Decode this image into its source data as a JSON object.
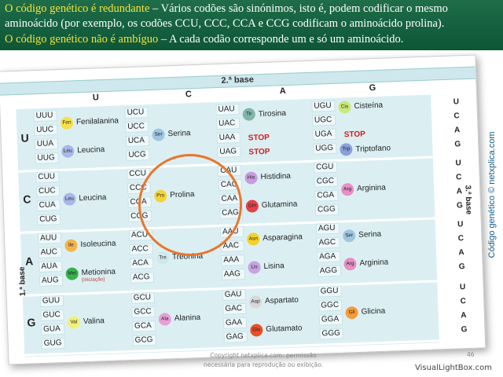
{
  "header": {
    "line1_highlight": "O código genético é redundante",
    "line1_rest": " – Vários codões são sinónimos, isto é, podem codificar o mesmo",
    "line2": "aminoácido (por exemplo, os codões CCU, CCC, CCA e CCG codificam o aminoácido prolina).",
    "line3_highlight": "O código genético não é ambíguo",
    "line3_rest": " – A cada codão corresponde um e só um aminoácido."
  },
  "table": {
    "second_base_label": "2.ª base",
    "first_base_label": "1.ª base",
    "third_base_label": "3.ª base",
    "second_letters": [
      "U",
      "C",
      "A",
      "G"
    ],
    "rows": [
      {
        "first": "U",
        "cells": [
          {
            "codons": [
              "UUU",
              "UUC",
              "UUA",
              "UUG"
            ],
            "aminos": [
              {
                "abbr": "Fen",
                "name": "Fenilalanina"
              },
              {
                "abbr": "Leu",
                "name": "Leucina"
              }
            ]
          },
          {
            "codons": [
              "UCU",
              "UCC",
              "UCA",
              "UCG"
            ],
            "aminos": [
              {
                "abbr": "Ser",
                "name": "Serina"
              }
            ]
          },
          {
            "codons": [
              "UAU",
              "UAC",
              "UAA",
              "UAG"
            ],
            "aminos": [
              {
                "abbr": "Tir",
                "name": "Tirosina"
              }
            ],
            "stops": [
              "STOP",
              "STOP"
            ]
          },
          {
            "codons": [
              "UGU",
              "UGC",
              "UGA",
              "UGG"
            ],
            "aminos": [
              {
                "abbr": "Cis",
                "name": "Cisteína"
              },
              {
                "abbr": "Trp",
                "name": "Triptofano"
              }
            ],
            "stops": [
              "STOP"
            ]
          }
        ],
        "third": [
          "U",
          "C",
          "A",
          "G"
        ]
      },
      {
        "first": "C",
        "cells": [
          {
            "codons": [
              "CUU",
              "CUC",
              "CUA",
              "CUG"
            ],
            "aminos": [
              {
                "abbr": "Leu",
                "name": "Leucina"
              }
            ]
          },
          {
            "codons": [
              "CCU",
              "CCC",
              "CCA",
              "CCG"
            ],
            "aminos": [
              {
                "abbr": "Pro",
                "name": "Prolina"
              }
            ]
          },
          {
            "codons": [
              "CAU",
              "CAC",
              "CAA",
              "CAG"
            ],
            "aminos": [
              {
                "abbr": "His",
                "name": "Histidina"
              },
              {
                "abbr": "Gln",
                "name": "Glutamina"
              }
            ]
          },
          {
            "codons": [
              "CGU",
              "CGC",
              "CGA",
              "CGG"
            ],
            "aminos": [
              {
                "abbr": "Arg",
                "name": "Arginina"
              }
            ]
          }
        ],
        "third": [
          "U",
          "C",
          "A",
          "G"
        ]
      },
      {
        "first": "A",
        "cells": [
          {
            "codons": [
              "AUU",
              "AUC",
              "AUA",
              "AUG"
            ],
            "aminos": [
              {
                "abbr": "Ile",
                "name": "Isoleucina"
              },
              {
                "abbr": "Met",
                "name": "Metionina",
                "note": "(iniciação)"
              }
            ]
          },
          {
            "codons": [
              "ACU",
              "ACC",
              "ACA",
              "ACG"
            ],
            "aminos": [
              {
                "abbr": "Tre",
                "name": "Treonina"
              }
            ]
          },
          {
            "codons": [
              "AAU",
              "AAC",
              "AAA",
              "AAG"
            ],
            "aminos": [
              {
                "abbr": "Asn",
                "name": "Asparagina"
              },
              {
                "abbr": "Lis",
                "name": "Lisina"
              }
            ]
          },
          {
            "codons": [
              "AGU",
              "AGC",
              "AGA",
              "AGG"
            ],
            "aminos": [
              {
                "abbr": "Ser",
                "name": "Serina"
              },
              {
                "abbr": "Arg",
                "name": "Arginina"
              }
            ]
          }
        ],
        "third": [
          "U",
          "C",
          "A",
          "G"
        ]
      },
      {
        "first": "G",
        "cells": [
          {
            "codons": [
              "GUU",
              "GUC",
              "GUA",
              "GUG"
            ],
            "aminos": [
              {
                "abbr": "Val",
                "name": "Valina"
              }
            ]
          },
          {
            "codons": [
              "GCU",
              "GCC",
              "GCA",
              "GCG"
            ],
            "aminos": [
              {
                "abbr": "Ala",
                "name": "Alanina"
              }
            ]
          },
          {
            "codons": [
              "GAU",
              "GAC",
              "GAA",
              "GAG"
            ],
            "aminos": [
              {
                "abbr": "Asp",
                "name": "Aspartato"
              },
              {
                "abbr": "Glu",
                "name": "Glutamato"
              }
            ]
          },
          {
            "codons": [
              "GGU",
              "GGC",
              "GGA",
              "GGG"
            ],
            "aminos": [
              {
                "abbr": "Gli",
                "name": "Glicina"
              }
            ]
          }
        ],
        "third": [
          "U",
          "C",
          "A",
          "G"
        ]
      }
    ]
  },
  "colors": {
    "header_bg": "#0d5636",
    "highlight_text": "#f4e33b",
    "stop": "#d41c1c",
    "circle": "#e8762c",
    "grid_bg": "#dbeff3",
    "Fen": "#f6e04a",
    "Leu": "#a9b6e6",
    "Ser": "#9fc6e0",
    "Tir": "#7fb6a8",
    "Cis": "#c9e87a",
    "Trp": "#8aa0d8",
    "Pro": "#f2d43a",
    "His": "#c99be0",
    "Gln": "#e2434b",
    "Arg": "#e88fc4",
    "Ile": "#f4b44a",
    "Met": "#37b24d",
    "Tre": "#cfe8ec",
    "Asn": "#f4d22a",
    "Lis": "#c9a2e0",
    "Val": "#f0f07a",
    "Ala": "#e9a0d6",
    "Asp": "#d8d8d8",
    "Glu": "#e8502a",
    "Gli": "#f59b3a"
  },
  "footer": {
    "copyright_line1": "Copyright netxplica.com: permissão",
    "copyright_line2": "necessária para reprodução ou exibição.",
    "page_number": "46",
    "visuallightbox": "VisualLightBox.com",
    "side_credit": "Código genético © netxplica.com"
  }
}
